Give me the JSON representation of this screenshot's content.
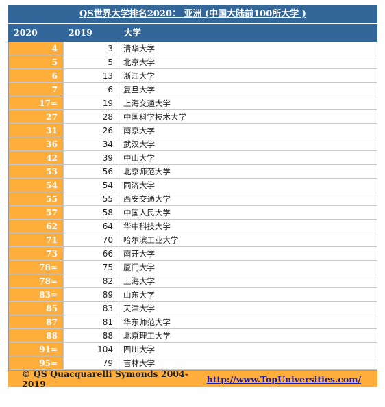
{
  "title": "QS世界大学排名2020： 亚洲 (中国大陆前100所大学 )",
  "headers": {
    "rank2020": "2020",
    "rank2019": "2019",
    "university": "大学"
  },
  "rows": [
    {
      "r2020": "4",
      "r2019": "3",
      "name": "清华大学"
    },
    {
      "r2020": "5",
      "r2019": "5",
      "name": "北京大学"
    },
    {
      "r2020": "6",
      "r2019": "13",
      "name": "浙江大学"
    },
    {
      "r2020": "7",
      "r2019": "6",
      "name": "复旦大学"
    },
    {
      "r2020": "17=",
      "r2019": "19",
      "name": "上海交通大学"
    },
    {
      "r2020": "27",
      "r2019": "28",
      "name": "中国科学技术大学"
    },
    {
      "r2020": "31",
      "r2019": "26",
      "name": "南京大学"
    },
    {
      "r2020": "36",
      "r2019": "34",
      "name": "武汉大学"
    },
    {
      "r2020": "42",
      "r2019": "39",
      "name": "中山大学"
    },
    {
      "r2020": "53",
      "r2019": "56",
      "name": "北京师范大学"
    },
    {
      "r2020": "54",
      "r2019": "54",
      "name": "同济大学"
    },
    {
      "r2020": "55",
      "r2019": "55",
      "name": "西安交通大学"
    },
    {
      "r2020": "57",
      "r2019": "58",
      "name": "中国人民大学"
    },
    {
      "r2020": "62",
      "r2019": "64",
      "name": "华中科技大学"
    },
    {
      "r2020": "71",
      "r2019": "70",
      "name": "哈尔滨工业大学"
    },
    {
      "r2020": "73",
      "r2019": "66",
      "name": "南开大学"
    },
    {
      "r2020": "78=",
      "r2019": "75",
      "name": "厦门大学"
    },
    {
      "r2020": "78=",
      "r2019": "82",
      "name": "上海大学"
    },
    {
      "r2020": "83=",
      "r2019": "89",
      "name": "山东大学"
    },
    {
      "r2020": "85",
      "r2019": "83",
      "name": "天津大学"
    },
    {
      "r2020": "87",
      "r2019": "81",
      "name": "华东师范大学"
    },
    {
      "r2020": "88",
      "r2019": "88",
      "name": "北京理工大学"
    },
    {
      "r2020": "91=",
      "r2019": "104",
      "name": "四川大学"
    },
    {
      "r2020": "95=",
      "r2019": "79",
      "name": "吉林大学"
    }
  ],
  "footer": {
    "copyright": "© QS Quacquarelli Symonds 2004-2019",
    "link": "http://www.TopUniversities.com/"
  },
  "colors": {
    "header_bg": "#336699",
    "rank_bg": "#ffae3c",
    "link": "#1a1aa6"
  }
}
